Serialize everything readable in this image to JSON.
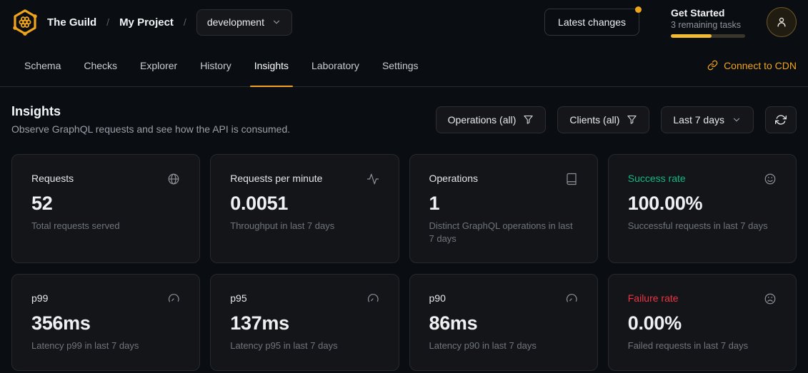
{
  "header": {
    "org": "The Guild",
    "project": "My Project",
    "separator": "/",
    "target": "development",
    "latest_changes_label": "Latest changes",
    "get_started": {
      "title": "Get Started",
      "subtitle": "3 remaining tasks",
      "progress_percent": 55
    }
  },
  "nav": {
    "tabs": [
      {
        "label": "Schema",
        "active": false
      },
      {
        "label": "Checks",
        "active": false
      },
      {
        "label": "Explorer",
        "active": false
      },
      {
        "label": "History",
        "active": false
      },
      {
        "label": "Insights",
        "active": true
      },
      {
        "label": "Laboratory",
        "active": false
      },
      {
        "label": "Settings",
        "active": false
      }
    ],
    "cdn_label": "Connect to CDN"
  },
  "page": {
    "title": "Insights",
    "subtitle": "Observe GraphQL requests and see how the API is consumed.",
    "filters": {
      "operations_label": "Operations (all)",
      "clients_label": "Clients (all)",
      "period_label": "Last 7 days",
      "refresh_icon": "refresh-icon"
    }
  },
  "stats": {
    "cards": [
      {
        "title": "Requests",
        "value": "52",
        "caption": "Total requests served",
        "icon": "globe-icon",
        "color": "default"
      },
      {
        "title": "Requests per minute",
        "value": "0.0051",
        "caption": "Throughput in last 7 days",
        "icon": "activity-icon",
        "color": "default"
      },
      {
        "title": "Operations",
        "value": "1",
        "caption": "Distinct GraphQL operations in last 7 days",
        "icon": "book-icon",
        "color": "default"
      },
      {
        "title": "Success rate",
        "value": "100.00%",
        "caption": "Successful requests in last 7 days",
        "icon": "smile-icon",
        "color": "success"
      },
      {
        "title": "p99",
        "value": "356ms",
        "caption": "Latency p99 in last 7 days",
        "icon": "gauge-icon",
        "color": "default"
      },
      {
        "title": "p95",
        "value": "137ms",
        "caption": "Latency p95 in last 7 days",
        "icon": "gauge-icon",
        "color": "default"
      },
      {
        "title": "p90",
        "value": "86ms",
        "caption": "Latency p90 in last 7 days",
        "icon": "gauge-icon",
        "color": "default"
      },
      {
        "title": "Failure rate",
        "value": "0.00%",
        "caption": "Failed requests in last 7 days",
        "icon": "frown-icon",
        "color": "failure"
      }
    ]
  },
  "colors": {
    "accent": "#f0a41c",
    "tab_underline": "#f2a227",
    "progress_fill": "#f3bb2f",
    "success": "#10b981",
    "failure": "#ef3342",
    "page_bg": "#0a0d12",
    "card_bg": "#131519"
  }
}
